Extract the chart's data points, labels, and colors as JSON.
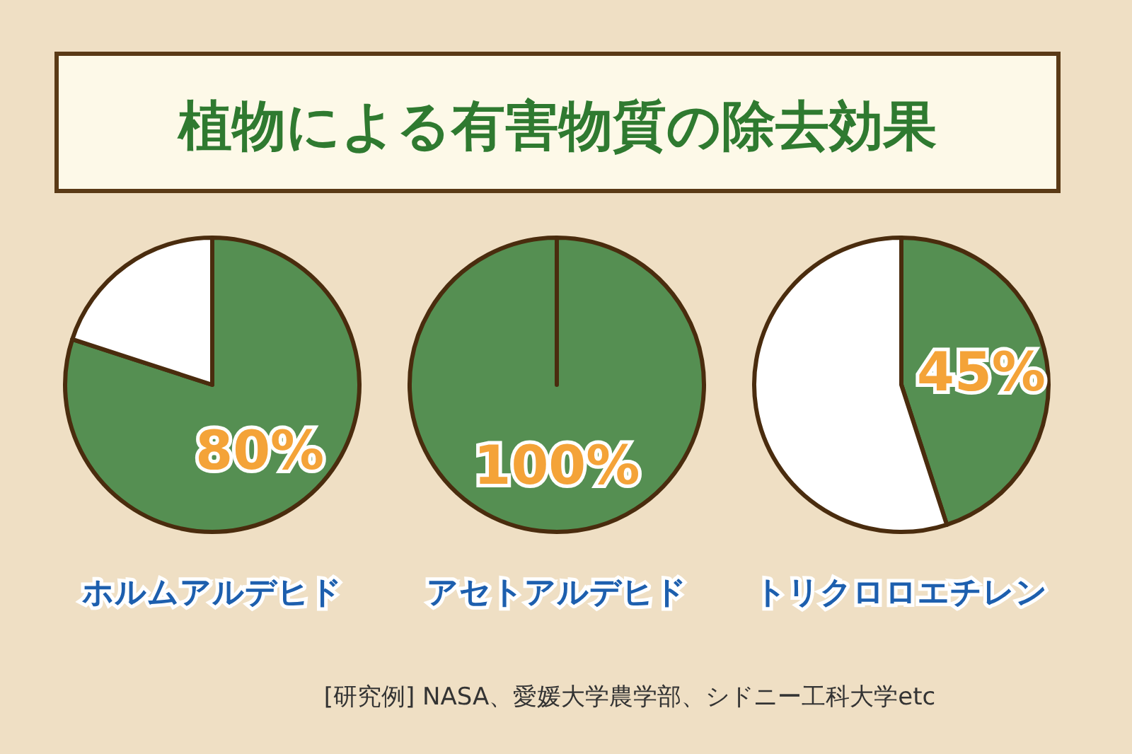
{
  "chart_data": [
    {
      "type": "other",
      "title": "植物による有害物質の除去効果",
      "annotations": [
        "[研究例]  NASA、愛媛大学農学部、シドニー工科大学etc"
      ]
    },
    {
      "type": "pie",
      "xlabel": "ホルムアルデヒド",
      "categories": [
        null,
        null
      ],
      "values": [
        80,
        20
      ],
      "colors": [
        "#558f52",
        "#ffffff"
      ],
      "value_labels": [
        "80%",
        null
      ]
    },
    {
      "type": "pie",
      "xlabel": "アセトアルデヒド",
      "categories": [
        null
      ],
      "values": [
        100
      ],
      "colors": [
        "#558f52"
      ],
      "value_labels": [
        "100%"
      ]
    },
    {
      "type": "pie",
      "xlabel": "トリクロロエチレン",
      "categories": [
        null,
        null
      ],
      "values": [
        45,
        55
      ],
      "colors": [
        "#558f52",
        "#ffffff"
      ],
      "value_labels": [
        "45%",
        null
      ]
    }
  ]
}
